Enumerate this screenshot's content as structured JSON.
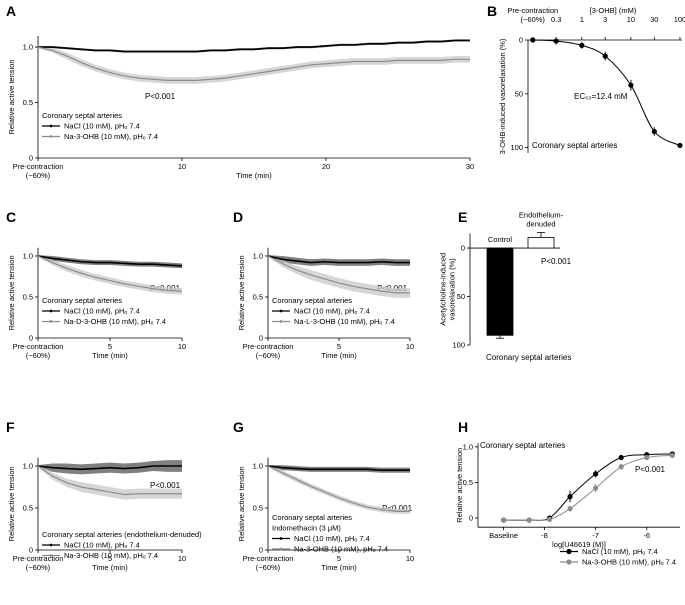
{
  "chart_data": [
    {
      "label": "A",
      "type": "line",
      "ylabel": "Relative active tension",
      "xlabel": "Time (min)",
      "xlim": [
        0,
        30
      ],
      "ylim": [
        0,
        1.1
      ],
      "xticks": [
        {
          "value": 0,
          "label": "Pre-contraction\n(~60%)"
        },
        10,
        20,
        30
      ],
      "yticks": [
        0,
        0.5,
        {
          "value": 1,
          "label": "1.0"
        }
      ],
      "legend_header": [
        "Coronary septal arteries"
      ],
      "annotations": [
        "P<0.001"
      ],
      "x": [
        0,
        1,
        2,
        3,
        4,
        5,
        6,
        7,
        8,
        9,
        10,
        11,
        12,
        13,
        14,
        15,
        16,
        17,
        18,
        19,
        20,
        21,
        22,
        23,
        24,
        25,
        26,
        27,
        28,
        29,
        30
      ],
      "series": [
        {
          "name": "NaCl (10 mM), pHₒ 7.4",
          "color": "#000000",
          "band_color": "#555555",
          "values": [
            1.0,
            1.0,
            0.99,
            0.98,
            0.97,
            0.97,
            0.96,
            0.96,
            0.96,
            0.96,
            0.96,
            0.96,
            0.97,
            0.97,
            0.98,
            0.98,
            0.99,
            0.99,
            1.0,
            1.0,
            1.01,
            1.02,
            1.02,
            1.03,
            1.03,
            1.04,
            1.04,
            1.05,
            1.05,
            1.06,
            1.06
          ],
          "errors": [
            0.01,
            0.01,
            0.01,
            0.01,
            0.01,
            0.01,
            0.01,
            0.01,
            0.01,
            0.01,
            0.01,
            0.01,
            0.01,
            0.01,
            0.01,
            0.01,
            0.01,
            0.01,
            0.01,
            0.01,
            0.01,
            0.01,
            0.01,
            0.01,
            0.01,
            0.01,
            0.01,
            0.01,
            0.01,
            0.01,
            0.01
          ]
        },
        {
          "name": "Na-3-OHB (10 mM), pHₒ 7.4",
          "color": "#8c8c8c",
          "band_color": "#c8c8c8",
          "values": [
            1.0,
            0.97,
            0.92,
            0.86,
            0.81,
            0.77,
            0.74,
            0.72,
            0.71,
            0.7,
            0.7,
            0.7,
            0.71,
            0.72,
            0.74,
            0.76,
            0.78,
            0.8,
            0.82,
            0.84,
            0.85,
            0.86,
            0.87,
            0.87,
            0.87,
            0.88,
            0.88,
            0.88,
            0.88,
            0.89,
            0.89
          ],
          "errors": [
            0.01,
            0.02,
            0.03,
            0.03,
            0.03,
            0.03,
            0.03,
            0.03,
            0.03,
            0.03,
            0.03,
            0.03,
            0.03,
            0.03,
            0.03,
            0.03,
            0.03,
            0.03,
            0.03,
            0.03,
            0.03,
            0.03,
            0.03,
            0.03,
            0.03,
            0.03,
            0.03,
            0.03,
            0.03,
            0.03,
            0.03
          ]
        }
      ]
    },
    {
      "label": "B",
      "type": "scatter",
      "ylabel": "3-OHB-induced vasorelaxation (%)",
      "xlabel": "[3-OHB] (mM)",
      "xscale": "log",
      "x_axis_position": "top",
      "y_inverted": true,
      "xlim": [
        0.08,
        110
      ],
      "ylim": [
        0,
        105
      ],
      "xticks": [
        {
          "value": 0.1,
          "label": "Pre-contraction\n(~60%)"
        },
        0.3,
        1,
        3,
        10,
        30,
        100
      ],
      "yticks": [
        0,
        50,
        100
      ],
      "annotations": [
        "EC₅₀=12.4 mM",
        "Coronary septal arteries"
      ],
      "x": [
        0.1,
        0.3,
        1,
        3,
        10,
        30,
        100
      ],
      "series": [
        {
          "color": "#000000",
          "values": [
            0,
            1,
            5,
            15,
            42,
            85,
            98
          ],
          "errors": [
            2,
            3,
            3,
            4,
            5,
            4,
            2
          ]
        }
      ]
    },
    {
      "label": "C",
      "type": "line",
      "ylabel": "Relative active tension",
      "xlabel": "Time (min)",
      "xlim": [
        0,
        10
      ],
      "ylim": [
        0,
        1.1
      ],
      "xticks": [
        {
          "value": 0,
          "label": "Pre-contraction\n(~60%)"
        },
        5,
        10
      ],
      "yticks": [
        0,
        0.5,
        {
          "value": 1,
          "label": "1.0"
        }
      ],
      "legend_header": [
        "Coronary septal arteries"
      ],
      "annotations": [
        "P<0.001"
      ],
      "x": [
        0,
        1,
        2,
        3,
        4,
        5,
        6,
        7,
        8,
        9,
        10
      ],
      "series": [
        {
          "name": "NaCl (10 mM), pHₒ 7.4",
          "color": "#000000",
          "band_color": "#555555",
          "values": [
            1.0,
            0.97,
            0.95,
            0.93,
            0.92,
            0.92,
            0.91,
            0.9,
            0.9,
            0.89,
            0.88
          ],
          "errors": [
            0.01,
            0.03,
            0.03,
            0.03,
            0.03,
            0.03,
            0.03,
            0.03,
            0.03,
            0.03,
            0.03
          ]
        },
        {
          "name": "Na-D-3-OHB (10 mM), pHₒ 7.4",
          "color": "#8c8c8c",
          "band_color": "#c8c8c8",
          "values": [
            1.0,
            0.92,
            0.85,
            0.79,
            0.74,
            0.7,
            0.66,
            0.63,
            0.6,
            0.58,
            0.57
          ],
          "errors": [
            0.01,
            0.03,
            0.04,
            0.04,
            0.04,
            0.04,
            0.04,
            0.04,
            0.04,
            0.04,
            0.04
          ]
        }
      ]
    },
    {
      "label": "D",
      "type": "line",
      "ylabel": "Relative active tension",
      "xlabel": "Time (min)",
      "xlim": [
        0,
        10
      ],
      "ylim": [
        0,
        1.1
      ],
      "xticks": [
        {
          "value": 0,
          "label": "Pre-contraction\n(~60%)"
        },
        5,
        10
      ],
      "yticks": [
        0,
        0.5,
        {
          "value": 1,
          "label": "1.0"
        }
      ],
      "legend_header": [
        "Coronary septal arteries"
      ],
      "annotations": [
        "P<0.001"
      ],
      "x": [
        0,
        1,
        2,
        3,
        4,
        5,
        6,
        7,
        8,
        9,
        10
      ],
      "series": [
        {
          "name": "NaCl (10 mM), pHₒ 7.4",
          "color": "#000000",
          "band_color": "#555555",
          "values": [
            1.0,
            0.96,
            0.94,
            0.92,
            0.93,
            0.92,
            0.92,
            0.92,
            0.93,
            0.92,
            0.92
          ],
          "errors": [
            0.01,
            0.04,
            0.04,
            0.04,
            0.04,
            0.04,
            0.04,
            0.04,
            0.04,
            0.04,
            0.04
          ]
        },
        {
          "name": "Na-L-3-OHB (10 mM), pHₒ 7.4",
          "color": "#8c8c8c",
          "band_color": "#c8c8c8",
          "values": [
            1.0,
            0.91,
            0.83,
            0.77,
            0.72,
            0.67,
            0.63,
            0.6,
            0.57,
            0.55,
            0.55
          ],
          "errors": [
            0.01,
            0.04,
            0.05,
            0.06,
            0.06,
            0.06,
            0.06,
            0.06,
            0.06,
            0.06,
            0.06
          ]
        }
      ]
    },
    {
      "label": "E",
      "type": "bar",
      "ylabel": "Acetylcholine-induced\nvasorelaxation (%)",
      "categories": [
        "Control",
        "Endothelium-\ndenuded"
      ],
      "values": [
        90,
        -11
      ],
      "errors": [
        3,
        5
      ],
      "colors": [
        "#000000",
        "#ffffff"
      ],
      "y_inverted": true,
      "ylim": [
        -15,
        100
      ],
      "yticks": [
        0,
        50,
        100
      ],
      "annotations": [
        "P<0.001",
        "Coronary septal arteries"
      ]
    },
    {
      "label": "F",
      "type": "line",
      "ylabel": "Relative active tension",
      "xlabel": "Time (min)",
      "xlim": [
        0,
        10
      ],
      "ylim": [
        0,
        1.1
      ],
      "xticks": [
        {
          "value": 0,
          "label": "Pre-contraction\n(~60%)"
        },
        5,
        10
      ],
      "yticks": [
        0,
        0.5,
        {
          "value": 1,
          "label": "1.0"
        }
      ],
      "legend_header": [
        "Coronary septal arteries (endothelium-denuded)"
      ],
      "annotations": [
        "P<0.001"
      ],
      "x": [
        0,
        1,
        2,
        3,
        4,
        5,
        6,
        7,
        8,
        9,
        10
      ],
      "series": [
        {
          "name": "NaCl (10 mM), pHₒ 7.4",
          "color": "#000000",
          "band_color": "#555555",
          "values": [
            1.0,
            0.98,
            0.97,
            0.96,
            0.97,
            0.98,
            0.97,
            0.98,
            1.0,
            1.0,
            1.0
          ],
          "errors": [
            0.01,
            0.05,
            0.06,
            0.06,
            0.06,
            0.06,
            0.06,
            0.06,
            0.06,
            0.07,
            0.07
          ]
        },
        {
          "name": "Na-3-OHB (10 mM), pHₒ 7.4",
          "color": "#8c8c8c",
          "band_color": "#c8c8c8",
          "values": [
            1.0,
            0.88,
            0.8,
            0.75,
            0.72,
            0.69,
            0.66,
            0.67,
            0.67,
            0.67,
            0.67
          ],
          "errors": [
            0.01,
            0.04,
            0.05,
            0.06,
            0.06,
            0.06,
            0.06,
            0.06,
            0.06,
            0.06,
            0.06
          ]
        }
      ]
    },
    {
      "label": "G",
      "type": "line",
      "ylabel": "Relative active tension",
      "xlabel": "Time (min)",
      "xlim": [
        0,
        10
      ],
      "ylim": [
        0,
        1.1
      ],
      "xticks": [
        {
          "value": 0,
          "label": "Pre-contraction\n(~60%)"
        },
        5,
        10
      ],
      "yticks": [
        0,
        0.5,
        {
          "value": 1,
          "label": "1.0"
        }
      ],
      "legend_header": [
        "Coronary septal arteries",
        "Indomethacin (3 μM)"
      ],
      "annotations": [
        "P<0.001"
      ],
      "x": [
        0,
        1,
        2,
        3,
        4,
        5,
        6,
        7,
        8,
        9,
        10
      ],
      "series": [
        {
          "name": "NaCl (10 mM), pHₒ 7.4",
          "color": "#000000",
          "band_color": "#555555",
          "values": [
            1.0,
            0.98,
            0.97,
            0.96,
            0.96,
            0.96,
            0.96,
            0.96,
            0.95,
            0.95,
            0.95
          ],
          "errors": [
            0.01,
            0.03,
            0.03,
            0.03,
            0.03,
            0.03,
            0.03,
            0.03,
            0.03,
            0.03,
            0.03
          ]
        },
        {
          "name": "Na-3-OHB (10 mM), pHₒ 7.4",
          "color": "#8c8c8c",
          "band_color": "#c8c8c8",
          "values": [
            1.0,
            0.92,
            0.84,
            0.76,
            0.69,
            0.62,
            0.56,
            0.51,
            0.48,
            0.46,
            0.46
          ],
          "errors": [
            0.01,
            0.03,
            0.03,
            0.03,
            0.03,
            0.03,
            0.03,
            0.03,
            0.03,
            0.03,
            0.03
          ]
        }
      ]
    },
    {
      "label": "H",
      "type": "scatter",
      "ylabel": "Relative active tension",
      "xlabel": "log[U46619 (M)]",
      "xlim": [
        -9.3,
        -5.35
      ],
      "ylim": [
        -0.13,
        1.05
      ],
      "xticks": [
        {
          "value": -8.8,
          "label": "Baseline"
        },
        -8,
        -7,
        -6
      ],
      "yticks": [
        0,
        0.5,
        {
          "value": 1,
          "label": "1.0"
        }
      ],
      "annotations": [
        "Coronary septal arteries",
        "P<0.001"
      ],
      "x": [
        -8.8,
        -8.3,
        -7.9,
        -7.5,
        -7.0,
        -6.5,
        -6.0,
        -5.5
      ],
      "series": [
        {
          "name": "NaCl (10 mM), pHₒ 7.4",
          "color": "#000000",
          "values": [
            -0.03,
            -0.03,
            0.0,
            0.3,
            0.62,
            0.85,
            0.89,
            0.9
          ],
          "errors": [
            0.01,
            0.01,
            0.02,
            0.08,
            0.05,
            0.03,
            0.02,
            0.02
          ]
        },
        {
          "name": "Na-3-OHB (10 mM), pHₒ 7.4",
          "color": "#8c8c8c",
          "values": [
            -0.03,
            -0.03,
            -0.02,
            0.13,
            0.42,
            0.72,
            0.85,
            0.88
          ],
          "errors": [
            0.01,
            0.01,
            0.01,
            0.04,
            0.06,
            0.04,
            0.02,
            0.02
          ]
        }
      ]
    }
  ]
}
